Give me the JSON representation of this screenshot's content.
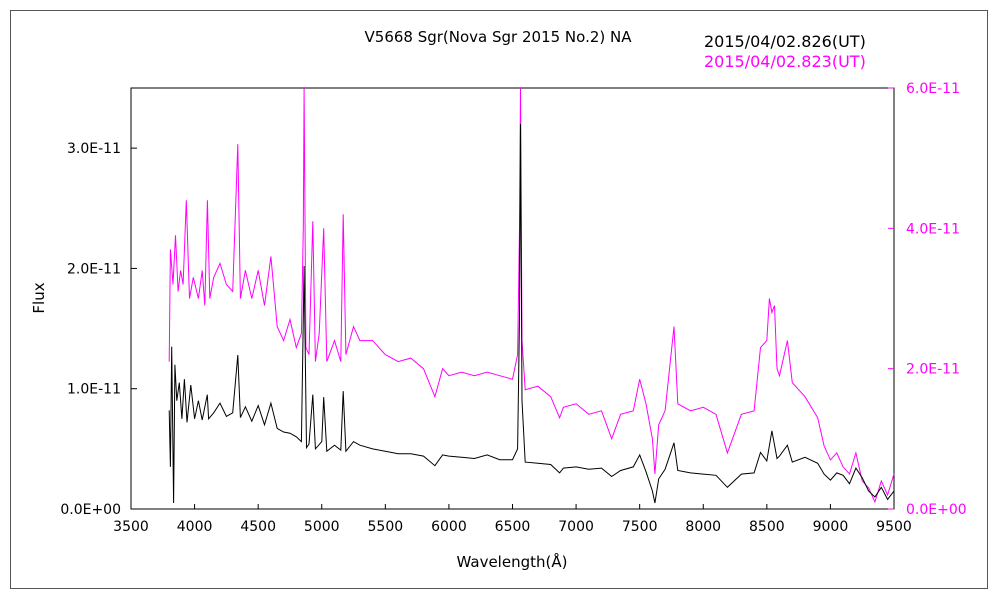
{
  "chart_data": {
    "type": "line",
    "title": "V5668 Sgr(Nova Sgr 2015 No.2)    NA",
    "xlabel": "Wavelength(Å)",
    "ylabel": "Flux",
    "xlim": [
      3500,
      9500
    ],
    "xticks": [
      "3500",
      "4000",
      "4500",
      "5000",
      "5500",
      "6000",
      "6500",
      "7000",
      "7500",
      "8000",
      "8500",
      "9000",
      "9500"
    ],
    "y_left": {
      "lim": [
        0,
        3.5e-11
      ],
      "ticks": [
        "0.0E+00",
        "1.0E-11",
        "2.0E-11",
        "3.0E-11"
      ],
      "color": "#000000"
    },
    "y_right": {
      "lim": [
        0,
        6e-11
      ],
      "ticks": [
        "0.0E+00",
        "2.0E-11",
        "4.0E-11",
        "6.0E-11"
      ],
      "color": "#ff00ff"
    },
    "grid": false,
    "legend_position": "top-right",
    "series": [
      {
        "name": "2015/04/02.826(UT)",
        "color": "#000000",
        "axis": "left",
        "points": [
          [
            3800,
            8.2e-12
          ],
          [
            3810,
            3.5e-12
          ],
          [
            3820,
            1.35e-11
          ],
          [
            3835,
            5e-13
          ],
          [
            3845,
            1.2e-11
          ],
          [
            3860,
            9e-12
          ],
          [
            3880,
            1.05e-11
          ],
          [
            3900,
            7.5e-12
          ],
          [
            3920,
            1.08e-11
          ],
          [
            3940,
            7.2e-12
          ],
          [
            3970,
            1.03e-11
          ],
          [
            4000,
            7.5e-12
          ],
          [
            4030,
            9e-12
          ],
          [
            4060,
            7.4e-12
          ],
          [
            4100,
            9.5e-12
          ],
          [
            4110,
            7.5e-12
          ],
          [
            4150,
            8e-12
          ],
          [
            4200,
            8.8e-12
          ],
          [
            4250,
            7.7e-12
          ],
          [
            4300,
            8e-12
          ],
          [
            4340,
            1.28e-11
          ],
          [
            4360,
            7.6e-12
          ],
          [
            4400,
            8.5e-12
          ],
          [
            4450,
            7.3e-12
          ],
          [
            4500,
            8.6e-12
          ],
          [
            4550,
            7e-12
          ],
          [
            4600,
            8.8e-12
          ],
          [
            4650,
            6.7e-12
          ],
          [
            4700,
            6.4e-12
          ],
          [
            4750,
            6.3e-12
          ],
          [
            4800,
            6e-12
          ],
          [
            4840,
            5.6e-12
          ],
          [
            4861,
            2.02e-11
          ],
          [
            4880,
            5.1e-12
          ],
          [
            4900,
            5.4e-12
          ],
          [
            4930,
            9.5e-12
          ],
          [
            4950,
            5e-12
          ],
          [
            5000,
            5.6e-12
          ],
          [
            5015,
            9.3e-12
          ],
          [
            5040,
            4.8e-12
          ],
          [
            5100,
            5.3e-12
          ],
          [
            5150,
            4.9e-12
          ],
          [
            5169,
            9.8e-12
          ],
          [
            5190,
            4.8e-12
          ],
          [
            5250,
            5.6e-12
          ],
          [
            5300,
            5.3e-12
          ],
          [
            5400,
            5e-12
          ],
          [
            5500,
            4.8e-12
          ],
          [
            5600,
            4.6e-12
          ],
          [
            5700,
            4.6e-12
          ],
          [
            5800,
            4.4e-12
          ],
          [
            5890,
            3.6e-12
          ],
          [
            5950,
            4.5e-12
          ],
          [
            6000,
            4.4e-12
          ],
          [
            6100,
            4.3e-12
          ],
          [
            6200,
            4.2e-12
          ],
          [
            6300,
            4.5e-12
          ],
          [
            6400,
            4.1e-12
          ],
          [
            6500,
            4.1e-12
          ],
          [
            6540,
            5e-12
          ],
          [
            6555,
            1.6e-11
          ],
          [
            6563,
            3.2e-11
          ],
          [
            6575,
            9e-12
          ],
          [
            6600,
            3.9e-12
          ],
          [
            6700,
            3.8e-12
          ],
          [
            6800,
            3.7e-12
          ],
          [
            6870,
            3e-12
          ],
          [
            6900,
            3.4e-12
          ],
          [
            7000,
            3.5e-12
          ],
          [
            7100,
            3.3e-12
          ],
          [
            7200,
            3.4e-12
          ],
          [
            7280,
            2.7e-12
          ],
          [
            7350,
            3.2e-12
          ],
          [
            7450,
            3.5e-12
          ],
          [
            7500,
            4.5e-12
          ],
          [
            7550,
            3.1e-12
          ],
          [
            7600,
            1.5e-12
          ],
          [
            7620,
            5e-13
          ],
          [
            7650,
            2.5e-12
          ],
          [
            7700,
            3.3e-12
          ],
          [
            7770,
            5.5e-12
          ],
          [
            7800,
            3.2e-12
          ],
          [
            7900,
            3e-12
          ],
          [
            8000,
            2.9e-12
          ],
          [
            8100,
            2.8e-12
          ],
          [
            8190,
            1.8e-12
          ],
          [
            8300,
            2.9e-12
          ],
          [
            8400,
            3e-12
          ],
          [
            8450,
            4.7e-12
          ],
          [
            8500,
            4e-12
          ],
          [
            8540,
            6.5e-12
          ],
          [
            8580,
            4.2e-12
          ],
          [
            8600,
            4.4e-12
          ],
          [
            8662,
            5.3e-12
          ],
          [
            8700,
            3.9e-12
          ],
          [
            8800,
            4.3e-12
          ],
          [
            8900,
            3.8e-12
          ],
          [
            8950,
            2.9e-12
          ],
          [
            9000,
            2.4e-12
          ],
          [
            9050,
            3e-12
          ],
          [
            9100,
            2.8e-12
          ],
          [
            9150,
            2.1e-12
          ],
          [
            9200,
            3.4e-12
          ],
          [
            9250,
            2.6e-12
          ],
          [
            9300,
            1.5e-12
          ],
          [
            9350,
            1e-12
          ],
          [
            9400,
            1.8e-12
          ],
          [
            9450,
            8e-13
          ],
          [
            9500,
            1.5e-12
          ]
        ]
      },
      {
        "name": "2015/04/02.823(UT)",
        "color": "#ff00ff",
        "axis": "right",
        "points": [
          [
            3800,
            2.1e-11
          ],
          [
            3810,
            3.7e-11
          ],
          [
            3830,
            3.2e-11
          ],
          [
            3850,
            3.9e-11
          ],
          [
            3870,
            3.1e-11
          ],
          [
            3890,
            3.4e-11
          ],
          [
            3910,
            3.2e-11
          ],
          [
            3935,
            4.4e-11
          ],
          [
            3960,
            3e-11
          ],
          [
            3990,
            3.3e-11
          ],
          [
            4030,
            3e-11
          ],
          [
            4060,
            3.4e-11
          ],
          [
            4080,
            2.9e-11
          ],
          [
            4101,
            4.4e-11
          ],
          [
            4120,
            3e-11
          ],
          [
            4150,
            3.3e-11
          ],
          [
            4200,
            3.5e-11
          ],
          [
            4250,
            3.2e-11
          ],
          [
            4300,
            3.1e-11
          ],
          [
            4340,
            5.2e-11
          ],
          [
            4360,
            3e-11
          ],
          [
            4400,
            3.4e-11
          ],
          [
            4450,
            3e-11
          ],
          [
            4500,
            3.4e-11
          ],
          [
            4550,
            2.9e-11
          ],
          [
            4600,
            3.6e-11
          ],
          [
            4650,
            2.6e-11
          ],
          [
            4700,
            2.4e-11
          ],
          [
            4750,
            2.7e-11
          ],
          [
            4800,
            2.3e-11
          ],
          [
            4840,
            2.5e-11
          ],
          [
            4855,
            4e-11
          ],
          [
            4861,
            6.2e-11
          ],
          [
            4875,
            2.3e-11
          ],
          [
            4900,
            2.2e-11
          ],
          [
            4930,
            4.1e-11
          ],
          [
            4950,
            2.1e-11
          ],
          [
            4980,
            2.5e-11
          ],
          [
            5015,
            4e-11
          ],
          [
            5040,
            2.1e-11
          ],
          [
            5100,
            2.4e-11
          ],
          [
            5150,
            2.1e-11
          ],
          [
            5169,
            4.2e-11
          ],
          [
            5190,
            2.2e-11
          ],
          [
            5250,
            2.6e-11
          ],
          [
            5300,
            2.4e-11
          ],
          [
            5400,
            2.4e-11
          ],
          [
            5500,
            2.2e-11
          ],
          [
            5600,
            2.1e-11
          ],
          [
            5700,
            2.15e-11
          ],
          [
            5800,
            2e-11
          ],
          [
            5890,
            1.6e-11
          ],
          [
            5950,
            2e-11
          ],
          [
            6000,
            1.9e-11
          ],
          [
            6100,
            1.95e-11
          ],
          [
            6200,
            1.9e-11
          ],
          [
            6300,
            1.95e-11
          ],
          [
            6400,
            1.9e-11
          ],
          [
            6500,
            1.85e-11
          ],
          [
            6540,
            2.2e-11
          ],
          [
            6555,
            4e-11
          ],
          [
            6563,
            6.1e-11
          ],
          [
            6575,
            2.4e-11
          ],
          [
            6600,
            1.7e-11
          ],
          [
            6700,
            1.75e-11
          ],
          [
            6800,
            1.6e-11
          ],
          [
            6870,
            1.3e-11
          ],
          [
            6900,
            1.45e-11
          ],
          [
            7000,
            1.5e-11
          ],
          [
            7100,
            1.35e-11
          ],
          [
            7200,
            1.4e-11
          ],
          [
            7280,
            1e-11
          ],
          [
            7350,
            1.35e-11
          ],
          [
            7450,
            1.4e-11
          ],
          [
            7500,
            1.85e-11
          ],
          [
            7550,
            1.5e-11
          ],
          [
            7600,
            1e-11
          ],
          [
            7620,
            5e-12
          ],
          [
            7650,
            1.2e-11
          ],
          [
            7700,
            1.4e-11
          ],
          [
            7770,
            2.6e-11
          ],
          [
            7800,
            1.5e-11
          ],
          [
            7900,
            1.4e-11
          ],
          [
            8000,
            1.45e-11
          ],
          [
            8100,
            1.35e-11
          ],
          [
            8190,
            8e-12
          ],
          [
            8300,
            1.35e-11
          ],
          [
            8400,
            1.4e-11
          ],
          [
            8450,
            2.3e-11
          ],
          [
            8500,
            2.4e-11
          ],
          [
            8520,
            3e-11
          ],
          [
            8540,
            2.8e-11
          ],
          [
            8560,
            2.9e-11
          ],
          [
            8580,
            2e-11
          ],
          [
            8600,
            1.9e-11
          ],
          [
            8662,
            2.4e-11
          ],
          [
            8700,
            1.8e-11
          ],
          [
            8800,
            1.6e-11
          ],
          [
            8900,
            1.3e-11
          ],
          [
            8950,
            9e-12
          ],
          [
            9000,
            7e-12
          ],
          [
            9050,
            8e-12
          ],
          [
            9100,
            6e-12
          ],
          [
            9150,
            5e-12
          ],
          [
            9200,
            8e-12
          ],
          [
            9250,
            4e-12
          ],
          [
            9300,
            3e-12
          ],
          [
            9350,
            1e-12
          ],
          [
            9400,
            4e-12
          ],
          [
            9450,
            2e-12
          ],
          [
            9500,
            5e-12
          ]
        ]
      }
    ]
  }
}
